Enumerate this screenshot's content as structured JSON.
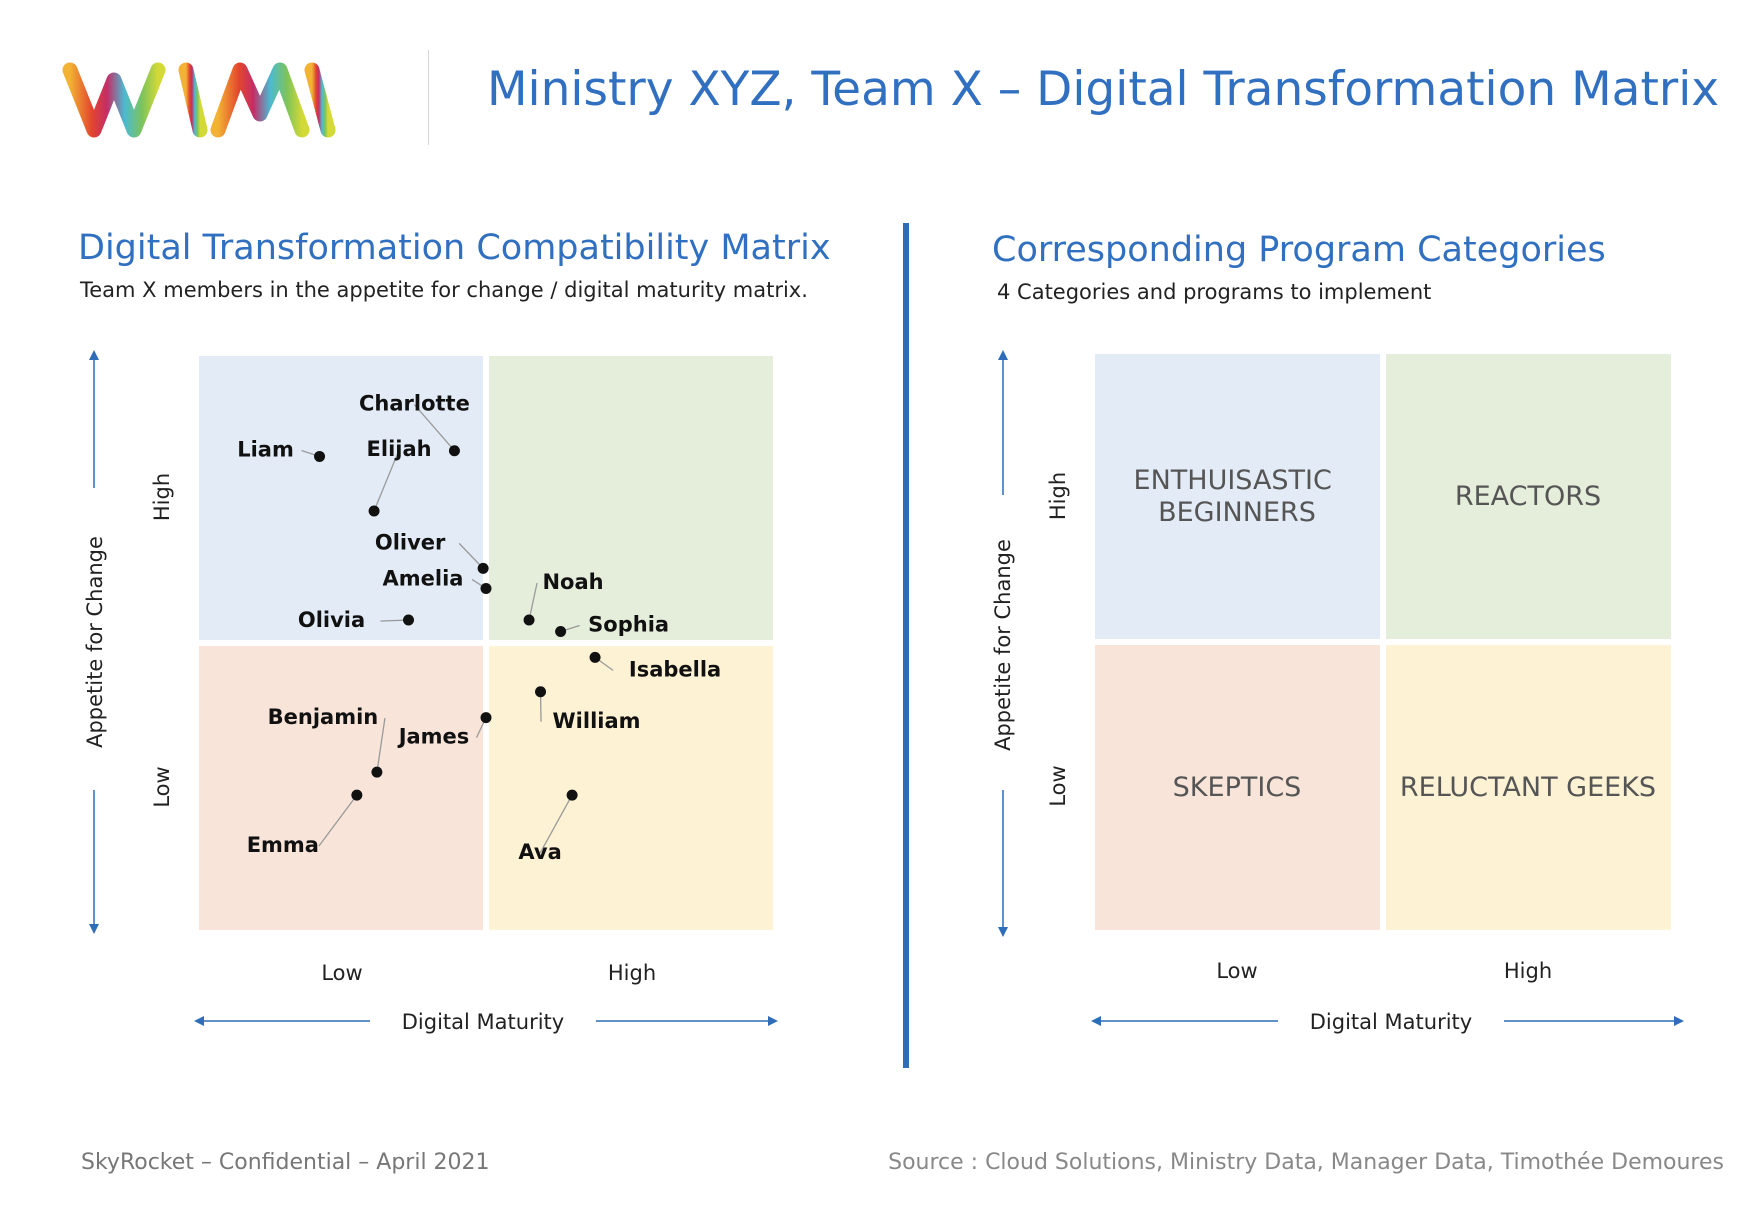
{
  "header": {
    "title": "Ministry XYZ, Team X – Digital Transformation Matrix",
    "logo": {
      "text": "WIMI",
      "colors": [
        "#f2b233",
        "#e2452e",
        "#c42d66",
        "#4bbad2",
        "#7dc35b",
        "#d3d937"
      ]
    }
  },
  "colors": {
    "quadrant_top_left": "#e3ecf6",
    "quadrant_top_right": "#e5eedb",
    "quadrant_bottom_left": "#f8e4d9",
    "quadrant_bottom_right": "#fdf2d3",
    "accent": "#3170c0"
  },
  "left_panel": {
    "title": "Digital Transformation Compatibility Matrix",
    "subtitle": "Team X members in the appetite for change / digital maturity matrix."
  },
  "right_panel": {
    "title": "Corresponding Program Categories",
    "subtitle": "4 Categories and programs to implement"
  },
  "chart_data": [
    {
      "type": "scatter",
      "title": "Digital Transformation Compatibility Matrix",
      "xlabel": "Digital Maturity",
      "ylabel": "Appetite for Change",
      "x_ticks": [
        "Low",
        "High"
      ],
      "y_ticks": [
        "Low",
        "High"
      ],
      "xlim": [
        0,
        2
      ],
      "ylim": [
        0,
        2
      ],
      "grid": false,
      "points": [
        {
          "name": "Liam",
          "x": 0.42,
          "y": 1.65
        },
        {
          "name": "Charlotte",
          "x": 0.89,
          "y": 1.67
        },
        {
          "name": "Elijah",
          "x": 0.61,
          "y": 1.46
        },
        {
          "name": "Oliver",
          "x": 0.99,
          "y": 1.26
        },
        {
          "name": "Amelia",
          "x": 1.0,
          "y": 1.19
        },
        {
          "name": "Olivia",
          "x": 0.73,
          "y": 1.08
        },
        {
          "name": "Noah",
          "x": 1.15,
          "y": 1.08
        },
        {
          "name": "Sophia",
          "x": 1.26,
          "y": 1.04
        },
        {
          "name": "Isabella",
          "x": 1.38,
          "y": 0.95
        },
        {
          "name": "William",
          "x": 1.19,
          "y": 0.83
        },
        {
          "name": "James",
          "x": 1.0,
          "y": 0.74
        },
        {
          "name": "Benjamin",
          "x": 0.62,
          "y": 0.55
        },
        {
          "name": "Emma",
          "x": 0.55,
          "y": 0.47
        },
        {
          "name": "Ava",
          "x": 1.3,
          "y": 0.47
        }
      ]
    },
    {
      "type": "table",
      "title": "Corresponding Program Categories",
      "xlabel": "Digital Maturity",
      "ylabel": "Appetite for Change",
      "x_ticks": [
        "Low",
        "High"
      ],
      "y_ticks": [
        "Low",
        "High"
      ],
      "quadrants": {
        "high_appetite_low_maturity": "ENTHUISASTIC BEGINNERS",
        "high_appetite_high_maturity": "REACTORS",
        "low_appetite_low_maturity": "SKEPTICS",
        "low_appetite_high_maturity": "RELUCTANT GEEKS"
      }
    }
  ],
  "footer": {
    "left": "SkyRocket – Confidential – April 2021",
    "right": "Source : Cloud Solutions, Ministry Data, Manager Data, Timothée Demoures"
  }
}
